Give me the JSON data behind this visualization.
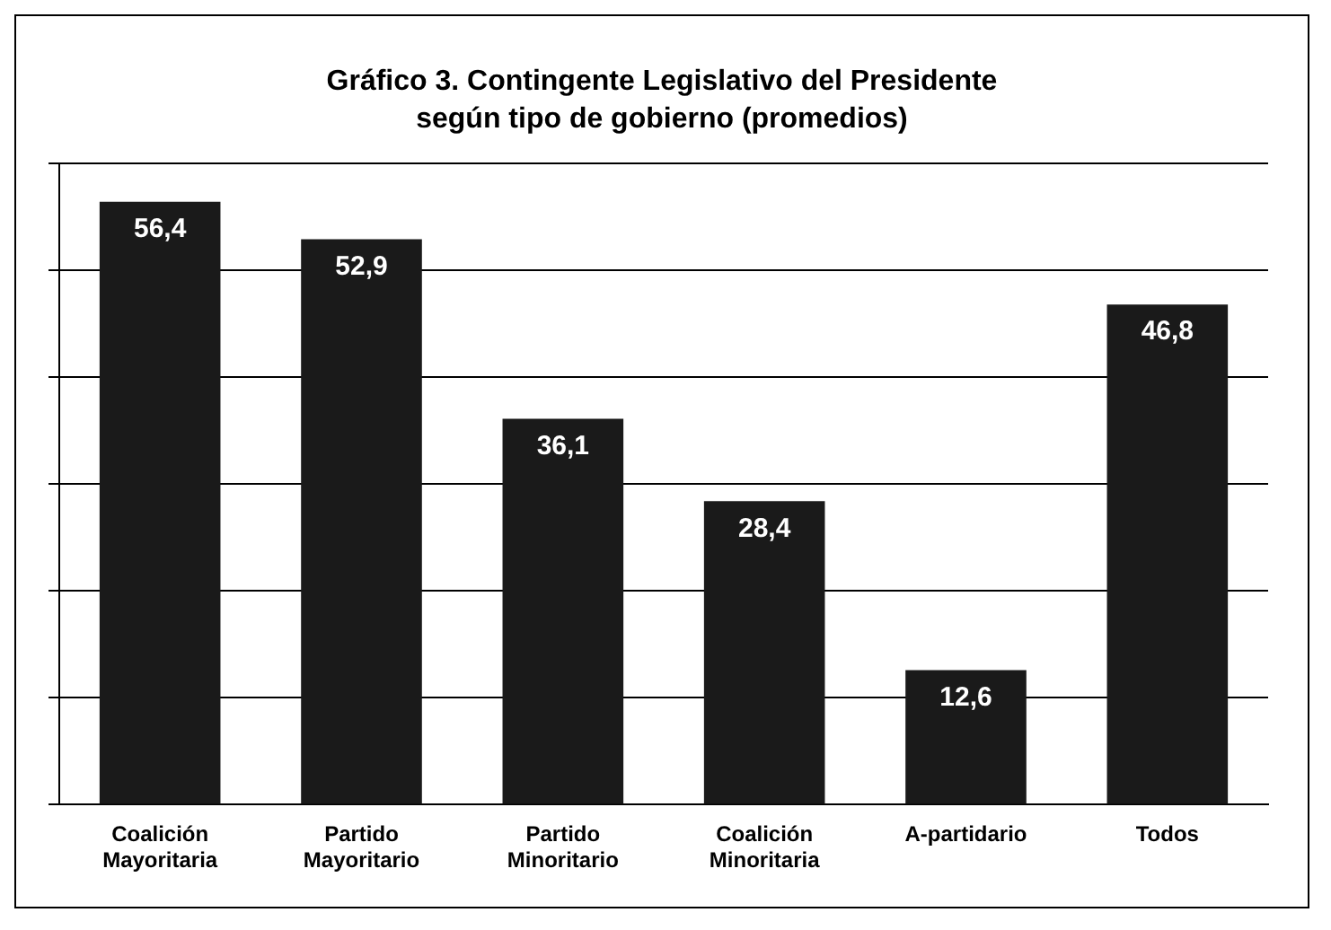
{
  "chart_data": {
    "type": "bar",
    "title": "Gráfico 3. Contingente Legislativo del Presidente según tipo de gobierno (promedios)",
    "categories": [
      "Coalición Mayoritaria",
      "Partido Mayoritario",
      "Partido Minoritario",
      "Coalición Minoritaria",
      "A-partidario",
      "Todos"
    ],
    "values": [
      56.4,
      52.9,
      36.1,
      28.4,
      12.6,
      46.8
    ],
    "color": "#1a1a1a",
    "value_labels": [
      "56,4",
      "52,9",
      "36,1",
      "28,4",
      "12,6",
      "46,8"
    ],
    "tick_labels": "x",
    "grid": "y",
    "legend": false
  }
}
